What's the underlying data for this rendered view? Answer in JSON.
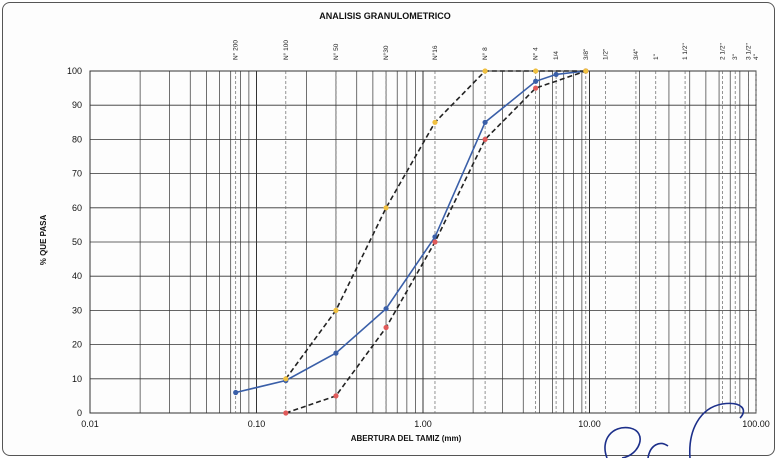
{
  "chart_data": {
    "type": "line",
    "title": "ANALISIS GRANULOMETRICO",
    "xlabel": "ABERTURA DEL TAMIZ (mm)",
    "ylabel": "% QUE PASA",
    "x_scale": "log",
    "xlim": [
      0.01,
      100
    ],
    "ylim": [
      0,
      100
    ],
    "x_tick_labels": [
      "0.01",
      "0.10",
      "1.00",
      "10.00",
      "100.00"
    ],
    "y_tick_labels": [
      "0",
      "10",
      "20",
      "30",
      "40",
      "50",
      "60",
      "70",
      "80",
      "90",
      "100"
    ],
    "grid": true,
    "sieves": [
      {
        "label": "N° 200",
        "size": 0.075
      },
      {
        "label": "N° 100",
        "size": 0.15
      },
      {
        "label": "N° 50",
        "size": 0.3
      },
      {
        "label": "N°30",
        "size": 0.6
      },
      {
        "label": "N°16",
        "size": 1.18
      },
      {
        "label": "N° 8",
        "size": 2.36
      },
      {
        "label": "N° 4",
        "size": 4.75
      },
      {
        "label": "1/4",
        "size": 6.3
      },
      {
        "label": "3/8\"",
        "size": 9.5
      },
      {
        "label": "1/2\"",
        "size": 12.5
      },
      {
        "label": "3/4\"",
        "size": 19
      },
      {
        "label": "1\"",
        "size": 25
      },
      {
        "label": "1 1/2\"",
        "size": 37.5
      },
      {
        "label": "2 1/2\"",
        "size": 63
      },
      {
        "label": "3\"",
        "size": 75
      },
      {
        "label": "3 1/2\"",
        "size": 90
      },
      {
        "label": "4\"",
        "size": 100
      }
    ],
    "series": [
      {
        "color": "#3a5fa8",
        "style": "solid",
        "marker": "circle",
        "points": [
          [
            0.075,
            6
          ],
          [
            0.15,
            9.5
          ],
          [
            0.3,
            17.5
          ],
          [
            0.6,
            30.5
          ],
          [
            1.18,
            51.5
          ],
          [
            2.36,
            85
          ],
          [
            4.75,
            97
          ],
          [
            6.3,
            99
          ],
          [
            9.5,
            100
          ]
        ]
      },
      {
        "color": "#222222",
        "style": "dashed",
        "marker": "circle",
        "marker_color": "#e05a5a",
        "points": [
          [
            0.15,
            0
          ],
          [
            0.3,
            5
          ],
          [
            0.6,
            25
          ],
          [
            1.18,
            50
          ],
          [
            2.36,
            80
          ],
          [
            4.75,
            95
          ],
          [
            9.5,
            100
          ]
        ]
      },
      {
        "color": "#222222",
        "style": "dashed",
        "marker": "circle",
        "marker_color": "#f0c040",
        "points": [
          [
            0.15,
            10
          ],
          [
            0.3,
            30
          ],
          [
            0.6,
            60
          ],
          [
            1.18,
            85
          ],
          [
            2.36,
            100
          ],
          [
            4.75,
            100
          ],
          [
            9.5,
            100
          ]
        ]
      }
    ]
  }
}
